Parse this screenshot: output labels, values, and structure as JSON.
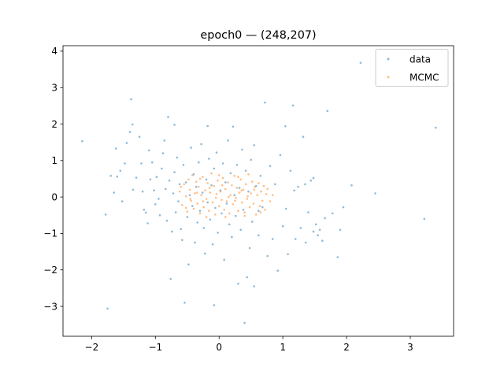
{
  "chart_data": {
    "type": "scatter",
    "title": "epoch0 — (248,207)",
    "xlabel": "",
    "ylabel": "",
    "xlim": [
      -2.45,
      3.68
    ],
    "ylim": [
      -3.82,
      4.15
    ],
    "xticks": [
      -2,
      -1,
      0,
      1,
      2,
      3
    ],
    "yticks": [
      -3,
      -2,
      -1,
      0,
      1,
      2,
      3,
      4
    ],
    "grid": false,
    "legend": "top-right",
    "series": [
      {
        "name": "data",
        "color": "#1f77b4",
        "points": [
          [
            -2.15,
            1.53
          ],
          [
            -1.78,
            -0.48
          ],
          [
            -1.75,
            -3.06
          ],
          [
            -1.7,
            0.58
          ],
          [
            -1.62,
            1.33
          ],
          [
            -1.6,
            0.56
          ],
          [
            -1.55,
            0.72
          ],
          [
            -1.52,
            -0.12
          ],
          [
            -1.45,
            1.48
          ],
          [
            -1.4,
            1.78
          ],
          [
            -1.38,
            2.68
          ],
          [
            -1.36,
            1.99
          ],
          [
            -1.3,
            0.53
          ],
          [
            -1.35,
            0.2
          ],
          [
            -1.25,
            1.65
          ],
          [
            -1.22,
            0.92
          ],
          [
            -1.2,
            0.15
          ],
          [
            -1.18,
            -0.35
          ],
          [
            -1.15,
            -0.43
          ],
          [
            -1.12,
            -0.72
          ],
          [
            -1.1,
            1.28
          ],
          [
            -1.08,
            0.48
          ],
          [
            -1.05,
            0.95
          ],
          [
            -1.02,
            0.18
          ],
          [
            -1.0,
            -0.2
          ],
          [
            -0.98,
            0.55
          ],
          [
            -0.95,
            -0.05
          ],
          [
            -0.93,
            -0.5
          ],
          [
            -0.9,
            0.78
          ],
          [
            -0.88,
            1.2
          ],
          [
            -0.86,
            1.55
          ],
          [
            -0.84,
            0.22
          ],
          [
            -0.82,
            -0.65
          ],
          [
            -0.8,
            2.19
          ],
          [
            -0.78,
            0.45
          ],
          [
            -0.76,
            -2.25
          ],
          [
            -0.74,
            -0.95
          ],
          [
            -0.72,
            0.1
          ],
          [
            -0.7,
            0.68
          ],
          [
            -0.68,
            -0.42
          ],
          [
            -0.66,
            1.08
          ],
          [
            -0.64,
            -0.12
          ],
          [
            -0.62,
            0.35
          ],
          [
            -0.6,
            -0.88
          ],
          [
            -0.58,
            -1.18
          ],
          [
            -0.56,
            0.88
          ],
          [
            -0.54,
            -2.9
          ],
          [
            -0.52,
            0.4
          ],
          [
            -0.5,
            -0.55
          ],
          [
            -0.48,
            -1.85
          ],
          [
            -0.46,
            0.05
          ],
          [
            -0.44,
            1.35
          ],
          [
            -0.42,
            -0.25
          ],
          [
            -0.4,
            0.62
          ],
          [
            -0.38,
            -1.25
          ],
          [
            -0.36,
            0.28
          ],
          [
            -0.34,
            -0.7
          ],
          [
            -0.32,
            0.95
          ],
          [
            -0.3,
            -0.38
          ],
          [
            -0.28,
            1.45
          ],
          [
            -0.26,
            0.12
          ],
          [
            -0.24,
            -0.85
          ],
          [
            -0.22,
            -1.55
          ],
          [
            -0.2,
            0.48
          ],
          [
            -0.18,
            -0.15
          ],
          [
            -0.16,
            1.05
          ],
          [
            -0.14,
            -0.62
          ],
          [
            -0.12,
            0.32
          ],
          [
            -0.1,
            -1.3
          ],
          [
            -0.08,
            0.78
          ],
          [
            -0.06,
            -0.3
          ],
          [
            -0.04,
            1.22
          ],
          [
            -0.02,
            -0.98
          ],
          [
            -0.08,
            -2.97
          ],
          [
            0.02,
            0.18
          ],
          [
            0.04,
            -0.45
          ],
          [
            0.06,
            0.92
          ],
          [
            0.08,
            -1.72
          ],
          [
            0.1,
            0.4
          ],
          [
            0.12,
            -0.18
          ],
          [
            0.14,
            1.55
          ],
          [
            0.16,
            -0.75
          ],
          [
            0.18,
            0.65
          ],
          [
            0.2,
            -1.1
          ],
          [
            0.22,
            1.93
          ],
          [
            0.24,
            0.05
          ],
          [
            0.26,
            -0.52
          ],
          [
            0.28,
            0.88
          ],
          [
            0.3,
            -2.38
          ],
          [
            0.32,
            0.25
          ],
          [
            0.34,
            -0.9
          ],
          [
            0.36,
            1.3
          ],
          [
            0.38,
            -0.35
          ],
          [
            0.4,
            -3.45
          ],
          [
            0.42,
            0.72
          ],
          [
            0.44,
            -2.2
          ],
          [
            0.46,
            0.15
          ],
          [
            0.48,
            -1.4
          ],
          [
            0.5,
            1.02
          ],
          [
            0.52,
            -0.68
          ],
          [
            0.55,
            -2.45
          ],
          [
            0.58,
            0.3
          ],
          [
            0.62,
            -1.05
          ],
          [
            0.65,
            0.58
          ],
          [
            0.68,
            -0.28
          ],
          [
            0.72,
            2.59
          ],
          [
            0.76,
            -1.62
          ],
          [
            0.8,
            0.85
          ],
          [
            0.84,
            -1.15
          ],
          [
            0.88,
            0.35
          ],
          [
            0.92,
            -2.02
          ],
          [
            0.96,
            1.15
          ],
          [
            1.0,
            -0.8
          ],
          [
            1.04,
            1.94
          ],
          [
            1.08,
            -1.57
          ],
          [
            1.12,
            0.72
          ],
          [
            1.16,
            2.51
          ],
          [
            1.2,
            -1.15
          ],
          [
            1.24,
            0.28
          ],
          [
            1.28,
            -0.85
          ],
          [
            1.32,
            1.65
          ],
          [
            1.36,
            -1.25
          ],
          [
            1.4,
            -0.42
          ],
          [
            1.44,
            0.45
          ],
          [
            1.48,
            -0.95
          ],
          [
            1.52,
            -0.75
          ],
          [
            1.55,
            -1.05
          ],
          [
            1.58,
            -0.9
          ],
          [
            1.62,
            -1.2
          ],
          [
            1.66,
            -0.58
          ],
          [
            1.7,
            2.36
          ],
          [
            1.78,
            -0.45
          ],
          [
            1.86,
            -1.65
          ],
          [
            1.9,
            -0.9
          ],
          [
            1.95,
            -0.28
          ],
          [
            2.08,
            0.32
          ],
          [
            2.22,
            3.68
          ],
          [
            2.45,
            0.1
          ],
          [
            3.22,
            -0.6
          ],
          [
            3.4,
            1.9
          ],
          [
            1.48,
            0.52
          ],
          [
            1.35,
            0.35
          ],
          [
            1.18,
            0.18
          ],
          [
            1.05,
            -0.32
          ],
          [
            -1.65,
            0.12
          ],
          [
            -1.48,
            0.92
          ],
          [
            -0.18,
            1.95
          ],
          [
            0.55,
            1.42
          ],
          [
            0.62,
            -0.38
          ],
          [
            -0.7,
            1.98
          ]
        ]
      },
      {
        "name": "MCMC",
        "color": "#ff7f0e",
        "points": [
          [
            -0.62,
            0.15
          ],
          [
            -0.58,
            -0.22
          ],
          [
            -0.55,
            0.35
          ],
          [
            -0.52,
            0.02
          ],
          [
            -0.5,
            -0.4
          ],
          [
            -0.48,
            0.48
          ],
          [
            -0.46,
            0.2
          ],
          [
            -0.44,
            -0.1
          ],
          [
            -0.42,
            0.6
          ],
          [
            -0.4,
            -0.32
          ],
          [
            -0.38,
            0.1
          ],
          [
            -0.36,
            0.42
          ],
          [
            -0.34,
            -0.18
          ],
          [
            -0.32,
            0.28
          ],
          [
            -0.3,
            -0.45
          ],
          [
            -0.28,
            0.05
          ],
          [
            -0.26,
            0.55
          ],
          [
            -0.24,
            -0.28
          ],
          [
            -0.22,
            0.18
          ],
          [
            -0.2,
            -0.05
          ],
          [
            -0.18,
            0.38
          ],
          [
            -0.16,
            -0.38
          ],
          [
            -0.14,
            0.12
          ],
          [
            -0.12,
            0.65
          ],
          [
            -0.1,
            -0.15
          ],
          [
            -0.08,
            0.3
          ],
          [
            -0.06,
            -0.48
          ],
          [
            -0.04,
            0.08
          ],
          [
            -0.02,
            0.45
          ],
          [
            0.0,
            -0.25
          ],
          [
            0.02,
            0.15
          ],
          [
            0.04,
            -0.08
          ],
          [
            0.06,
            0.52
          ],
          [
            0.08,
            -0.35
          ],
          [
            0.1,
            0.22
          ],
          [
            0.12,
            -0.12
          ],
          [
            0.14,
            0.4
          ],
          [
            0.16,
            -0.45
          ],
          [
            0.18,
            0.05
          ],
          [
            0.2,
            0.32
          ],
          [
            0.22,
            -0.2
          ],
          [
            0.24,
            0.58
          ],
          [
            0.26,
            -0.02
          ],
          [
            0.28,
            0.25
          ],
          [
            0.3,
            -0.38
          ],
          [
            0.32,
            0.12
          ],
          [
            0.34,
            0.48
          ],
          [
            0.36,
            -0.15
          ],
          [
            0.38,
            0.2
          ],
          [
            0.4,
            -0.42
          ],
          [
            0.42,
            0.35
          ],
          [
            0.44,
            -0.05
          ],
          [
            0.46,
            0.62
          ],
          [
            0.48,
            -0.28
          ],
          [
            0.5,
            0.1
          ],
          [
            0.52,
            0.42
          ],
          [
            0.54,
            -0.18
          ],
          [
            0.56,
            0.28
          ],
          [
            0.58,
            -0.48
          ],
          [
            0.6,
            0.05
          ],
          [
            0.62,
            0.38
          ],
          [
            0.64,
            -0.25
          ],
          [
            0.66,
            0.15
          ],
          [
            0.68,
            -0.1
          ],
          [
            0.7,
            0.3
          ],
          [
            0.72,
            -0.35
          ],
          [
            0.74,
            0.08
          ],
          [
            0.76,
            0.22
          ],
          [
            0.8,
            -0.12
          ],
          [
            0.84,
            0.05
          ],
          [
            -0.6,
            0.28
          ],
          [
            -0.45,
            -0.05
          ],
          [
            -0.35,
            0.12
          ],
          [
            -0.25,
            -0.12
          ],
          [
            -0.15,
            0.25
          ],
          [
            -0.05,
            -0.02
          ],
          [
            0.05,
            0.32
          ],
          [
            0.15,
            0.0
          ],
          [
            0.25,
            -0.1
          ],
          [
            0.35,
            0.18
          ],
          [
            0.45,
            0.02
          ],
          [
            0.55,
            0.2
          ],
          [
            -0.3,
            0.5
          ],
          [
            0.0,
            0.6
          ],
          [
            0.3,
            0.55
          ],
          [
            -0.2,
            -0.55
          ],
          [
            0.1,
            -0.55
          ],
          [
            0.4,
            -0.52
          ],
          [
            0.65,
            -0.42
          ],
          [
            -0.52,
            -0.3
          ]
        ]
      }
    ],
    "tick_labels": {
      "x": [
        "−2",
        "−1",
        "0",
        "1",
        "2",
        "3"
      ],
      "y": [
        "−3",
        "−2",
        "−1",
        "0",
        "1",
        "2",
        "3",
        "4"
      ]
    }
  }
}
